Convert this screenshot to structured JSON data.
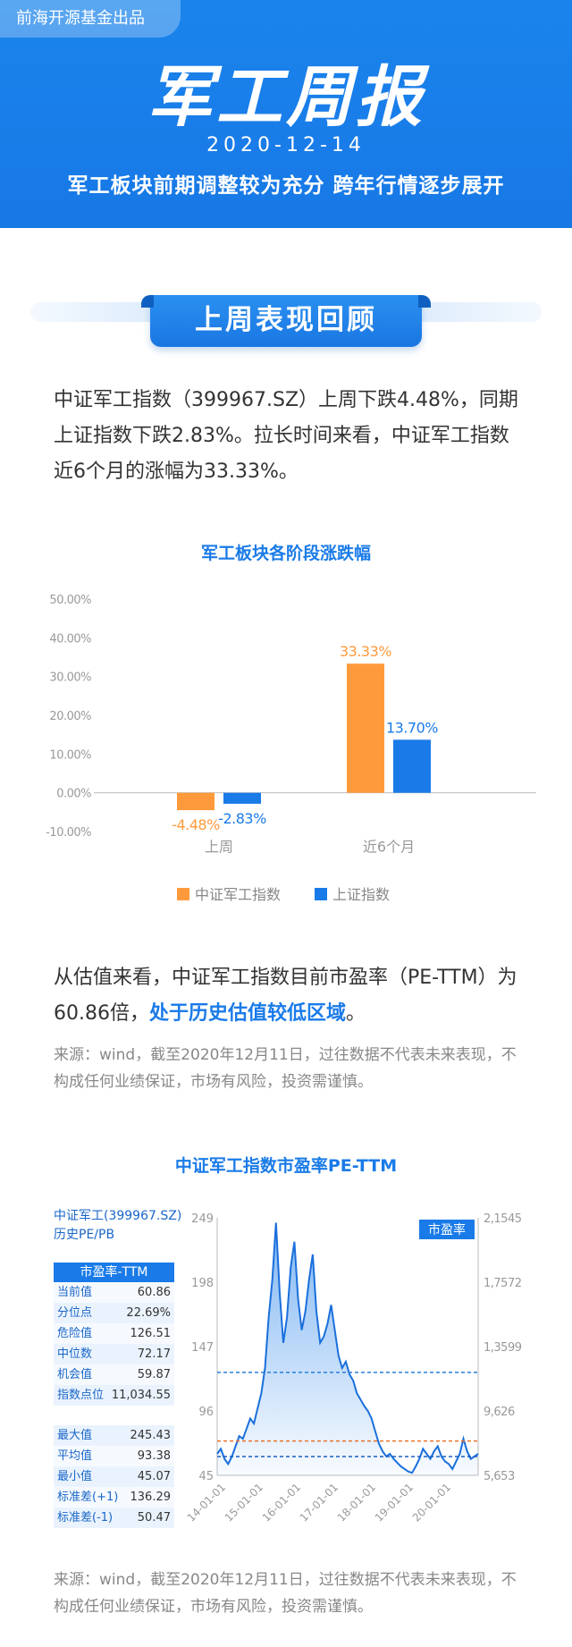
{
  "header": {
    "publisher": "前海开源基金出品",
    "title": "军工周报",
    "date": "2020-12-14",
    "subtitle": "军工板块前期调整较为充分 跨年行情逐步展开"
  },
  "section1": {
    "title": "上周表现回顾"
  },
  "paragraph1": "中证军工指数（399967.SZ）上周下跌4.48%，同期上证指数下跌2.83%。拉长时间来看，中证军工指数近6个月的涨幅为33.33%。",
  "chart1": {
    "title": "军工板块各阶段涨跌幅",
    "yticks": [
      "50.00%",
      "40.00%",
      "30.00%",
      "20.00%",
      "10.00%",
      "0.00%",
      "-10.00%"
    ],
    "legend": [
      "中证军工指数",
      "上证指数"
    ],
    "colors": {
      "series1": "#ff9a3c",
      "series2": "#1a7be8"
    }
  },
  "chart_data": {
    "type": "bar",
    "title": "军工板块各阶段涨跌幅",
    "categories": [
      "上周",
      "近6个月"
    ],
    "series": [
      {
        "name": "中证军工指数",
        "values": [
          -4.48,
          33.33
        ],
        "labels": [
          "-4.48%",
          "33.33%"
        ]
      },
      {
        "name": "上证指数",
        "values": [
          -2.83,
          13.7
        ],
        "labels": [
          "-2.83%",
          "13.70%"
        ]
      }
    ],
    "ylim": [
      -10,
      50
    ],
    "legend_position": "bottom"
  },
  "paragraph2": {
    "text": "从估值来看，中证军工指数目前市盈率（PE-TTM）为60.86倍，",
    "highlight": "处于历史估值较低区域",
    "end": "。"
  },
  "note": "来源：wind，截至2020年12月11日，过往数据不代表未来表现，不构成任何业绩保证，市场有风险，投资需谨慎。",
  "chart2": {
    "title": "中证军工指数市盈率PE-TTM",
    "index_label": [
      "中证军工(399967.SZ)",
      "历史PE/PB"
    ],
    "legend_badge": "市盈率",
    "left_ticks": [
      "249",
      "198",
      "147",
      "96",
      "45"
    ],
    "right_ticks": [
      "2,1545",
      "1,7572",
      "1,3599",
      "9,626",
      "5,653"
    ],
    "x_ticks": [
      "14-01-01",
      "15-01-01",
      "16-01-01",
      "17-01-01",
      "18-01-01",
      "19-01-01",
      "20-01-01"
    ],
    "table_head": "市盈率-TTM",
    "table1": [
      {
        "label": "当前值",
        "value": "60.86"
      },
      {
        "label": "分位点",
        "value": "22.69%"
      },
      {
        "label": "危险值",
        "value": "126.51"
      },
      {
        "label": "中位数",
        "value": "72.17"
      },
      {
        "label": "机会值",
        "value": "59.87"
      },
      {
        "label": "指数点位",
        "value": "11,034.55"
      }
    ],
    "table2": [
      {
        "label": "最大值",
        "value": "245.43"
      },
      {
        "label": "平均值",
        "value": "93.38"
      },
      {
        "label": "最小值",
        "value": "45.07"
      },
      {
        "label": "标准差(+1)",
        "value": "136.29"
      },
      {
        "label": "标准差(-1)",
        "value": "50.47"
      }
    ],
    "reference_lines": {
      "danger": 126.51,
      "median": 72.17,
      "opportunity": 59.87
    },
    "pe_series": [
      62,
      66,
      58,
      54,
      60,
      68,
      76,
      74,
      82,
      90,
      86,
      98,
      110,
      130,
      170,
      200,
      245,
      190,
      150,
      170,
      210,
      230,
      185,
      160,
      175,
      200,
      220,
      175,
      150,
      155,
      165,
      180,
      160,
      140,
      130,
      135,
      125,
      120,
      110,
      105,
      100,
      96,
      90,
      80,
      70,
      64,
      60,
      62,
      58,
      55,
      52,
      50,
      48,
      47,
      52,
      58,
      66,
      62,
      58,
      64,
      68,
      60,
      56,
      54,
      50,
      56,
      62,
      74,
      64,
      58,
      60,
      62
    ]
  }
}
